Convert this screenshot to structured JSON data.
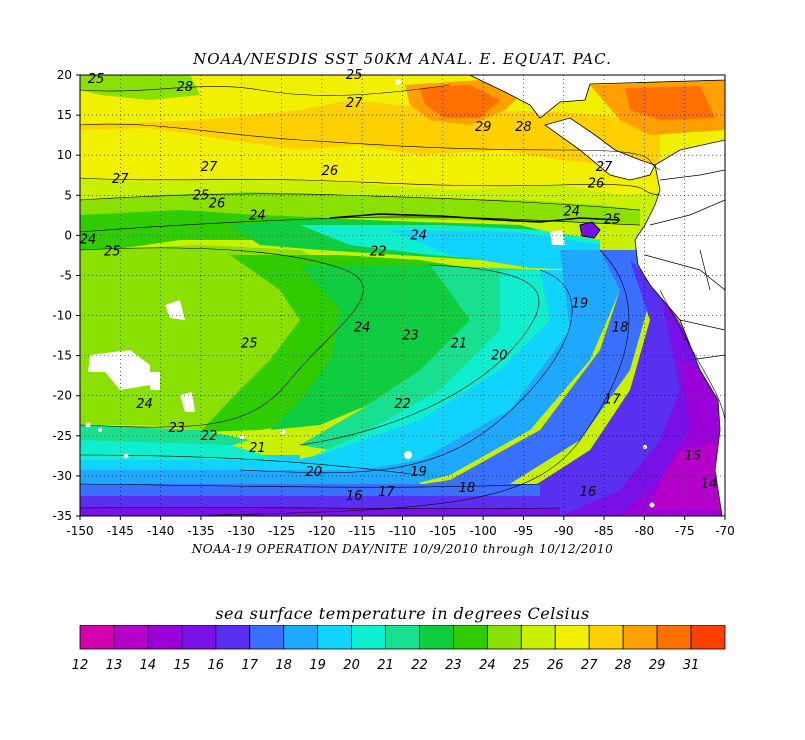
{
  "title": "NOAA/NESDIS SST 50KM ANAL. E. EQUAT. PAC.",
  "subtitle": "NOAA-19 OPERATION DAY/NITE  10/9/2010 through 10/12/2010",
  "colorbar": {
    "title": "sea surface temperature in degrees Celsius",
    "labels": [
      "12",
      "13",
      "14",
      "15",
      "16",
      "17",
      "18",
      "19",
      "20",
      "21",
      "22",
      "23",
      "24",
      "25",
      "26",
      "27",
      "28",
      "29",
      "31"
    ],
    "colors": [
      "#d400b0",
      "#b400c8",
      "#9a00d8",
      "#7a10e8",
      "#5a30f0",
      "#3a70ff",
      "#1fa8ff",
      "#10d4ff",
      "#10eed0",
      "#18e090",
      "#10cc40",
      "#30cc00",
      "#8ae000",
      "#c8f000",
      "#f0f000",
      "#ffd000",
      "#ffa000",
      "#ff7000",
      "#ff4000"
    ]
  },
  "map": {
    "x_ticks": [
      "-150",
      "-145",
      "-140",
      "-135",
      "-130",
      "-125",
      "-120",
      "-115",
      "-110",
      "-105",
      "-100",
      "-95",
      "-90",
      "-85",
      "-80",
      "-75",
      "-70"
    ],
    "y_ticks": [
      "20",
      "15",
      "10",
      "5",
      "0",
      "-5",
      "-10",
      "-15",
      "-20",
      "-25",
      "-30",
      "-35"
    ],
    "contour_labels": [
      {
        "t": "25",
        "lon": -148,
        "lat": 19
      },
      {
        "t": "28",
        "lon": -137,
        "lat": 18
      },
      {
        "t": "25",
        "lon": -116,
        "lat": 19.5
      },
      {
        "t": "27",
        "lon": -116,
        "lat": 16
      },
      {
        "t": "29",
        "lon": -100,
        "lat": 13
      },
      {
        "t": "28",
        "lon": -95,
        "lat": 13
      },
      {
        "t": "27",
        "lon": -85,
        "lat": 8
      },
      {
        "t": "26",
        "lon": -86,
        "lat": 6
      },
      {
        "t": "27",
        "lon": -134,
        "lat": 8
      },
      {
        "t": "26",
        "lon": -119,
        "lat": 7.5
      },
      {
        "t": "27",
        "lon": -145,
        "lat": 6.5
      },
      {
        "t": "25",
        "lon": -135,
        "lat": 4.5
      },
      {
        "t": "26",
        "lon": -133,
        "lat": 3.5
      },
      {
        "t": "24",
        "lon": -128,
        "lat": 2
      },
      {
        "t": "24",
        "lon": -149,
        "lat": -1
      },
      {
        "t": "25",
        "lon": -146,
        "lat": -2.5
      },
      {
        "t": "22",
        "lon": -113,
        "lat": -2.5
      },
      {
        "t": "24",
        "lon": -108,
        "lat": -0.5
      },
      {
        "t": "24",
        "lon": -115,
        "lat": -12
      },
      {
        "t": "23",
        "lon": -109,
        "lat": -13
      },
      {
        "t": "25",
        "lon": -129,
        "lat": -14
      },
      {
        "t": "21",
        "lon": -103,
        "lat": -14
      },
      {
        "t": "20",
        "lon": -98,
        "lat": -15.5
      },
      {
        "t": "19",
        "lon": -88,
        "lat": -9
      },
      {
        "t": "18",
        "lon": -83,
        "lat": -12
      },
      {
        "t": "17",
        "lon": -84,
        "lat": -21
      },
      {
        "t": "24",
        "lon": -142,
        "lat": -21.5
      },
      {
        "t": "23",
        "lon": -138,
        "lat": -24.5
      },
      {
        "t": "22",
        "lon": -134,
        "lat": -25.5
      },
      {
        "t": "22",
        "lon": -110,
        "lat": -21.5
      },
      {
        "t": "21",
        "lon": -128,
        "lat": -27
      },
      {
        "t": "20",
        "lon": -121,
        "lat": -30
      },
      {
        "t": "19",
        "lon": -108,
        "lat": -30
      },
      {
        "t": "17",
        "lon": -112,
        "lat": -32.5
      },
      {
        "t": "18",
        "lon": -102,
        "lat": -32
      },
      {
        "t": "16",
        "lon": -116,
        "lat": -33
      },
      {
        "t": "16",
        "lon": -87,
        "lat": -32.5
      },
      {
        "t": "15",
        "lon": -74,
        "lat": -28
      },
      {
        "t": "14",
        "lon": -72,
        "lat": -31.5
      },
      {
        "t": "24",
        "lon": -89,
        "lat": 2.5
      },
      {
        "t": "25",
        "lon": -84,
        "lat": 1.5
      }
    ]
  }
}
